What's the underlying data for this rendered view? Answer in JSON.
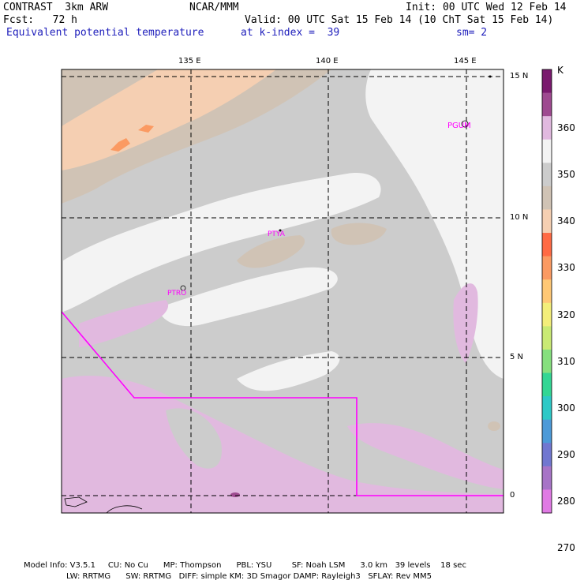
{
  "header": {
    "model": "CONTRAST  3km ARW",
    "org": "NCAR/MMM",
    "init": "Init: 00 UTC Wed 12 Feb 14",
    "fcst": "Fcst:   72 h",
    "valid": "Valid: 00 UTC Sat 15 Feb 14 (10 ChT Sat 15 Feb 14)",
    "field": "Equivalent potential temperature",
    "level": "at k-index =  39",
    "smooth": "sm= 2"
  },
  "map": {
    "lon_labels": [
      "135 E",
      "140 E",
      "145 E"
    ],
    "lat_labels": [
      "15 N",
      "10 N",
      "5 N",
      "0"
    ],
    "stations": [
      "PGUM",
      "PTYA",
      "PTRO"
    ]
  },
  "colorbar": {
    "unit": "K",
    "labels": [
      "360",
      "350",
      "340",
      "330",
      "320",
      "310",
      "300",
      "290",
      "280",
      "270"
    ],
    "colors": [
      "#7a1a6e",
      "#9e4a90",
      "#e1b9df",
      "#f3f3f3",
      "#cccccc",
      "#d0c3b5",
      "#f5cfb2",
      "#ff6a44",
      "#fb9a62",
      "#ffc875",
      "#f3ee7a",
      "#c9ea74",
      "#86e07e",
      "#33d694",
      "#2ec9c7",
      "#4d9ad8",
      "#7177d0",
      "#a774c7",
      "#e07ae4"
    ]
  },
  "footer": {
    "line1": "Model Info: V3.5.1     CU: No Cu      MP: Thompson      PBL: YSU        SF: Noah LSM      3.0 km   39 levels    18 sec",
    "line2": "LW: RRTMG      SW: RRTMG   DIFF: simple KM: 3D Smagor DAMP: Rayleigh3   SFLAY: Rev MM5"
  }
}
